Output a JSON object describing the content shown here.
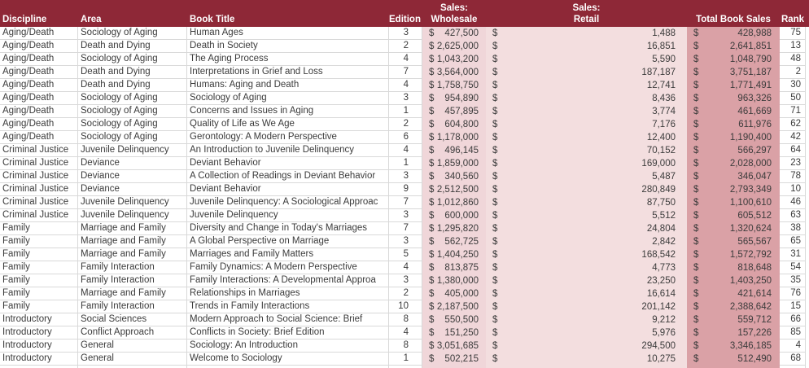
{
  "colors": {
    "header_bg": "#8E2837",
    "header_text": "#FFFFFF",
    "text": "#3B3B3B",
    "gridline": "#D9D9D9",
    "wholesale_bg": "#F0D6D9",
    "retail_bg": "#F3DEDF",
    "total_bg": "#DAA1A6"
  },
  "table": {
    "currency_symbol": "$",
    "header": {
      "discipline": "Discipline",
      "area": "Area",
      "book_title": "Book Title",
      "edition": "Edition",
      "wholesale_line1": "Sales:",
      "wholesale_line2": "Wholesale",
      "retail_line1": "Sales:",
      "retail_line2": "Retail",
      "total": "Total Book Sales",
      "rank": "Rank"
    },
    "rows": [
      {
        "discipline": "Aging/Death",
        "area": "Sociology of Aging",
        "title": "Human Ages",
        "edition": "3",
        "wholesale": "427,500",
        "retail": "1,488",
        "total": "428,988",
        "rank": "75"
      },
      {
        "discipline": "Aging/Death",
        "area": "Death and Dying",
        "title": "Death in Society",
        "edition": "2",
        "wholesale": "2,625,000",
        "retail": "16,851",
        "total": "2,641,851",
        "rank": "13"
      },
      {
        "discipline": "Aging/Death",
        "area": "Sociology of Aging",
        "title": "The Aging Process",
        "edition": "4",
        "wholesale": "1,043,200",
        "retail": "5,590",
        "total": "1,048,790",
        "rank": "48"
      },
      {
        "discipline": "Aging/Death",
        "area": "Death and Dying",
        "title": "Interpretations in Grief and Loss",
        "edition": "7",
        "wholesale": "3,564,000",
        "retail": "187,187",
        "total": "3,751,187",
        "rank": "2"
      },
      {
        "discipline": "Aging/Death",
        "area": "Death and Dying",
        "title": "Humans: Aging and Death",
        "edition": "4",
        "wholesale": "1,758,750",
        "retail": "12,741",
        "total": "1,771,491",
        "rank": "30"
      },
      {
        "discipline": "Aging/Death",
        "area": "Sociology of Aging",
        "title": "Sociology of Aging",
        "edition": "3",
        "wholesale": "954,890",
        "retail": "8,436",
        "total": "963,326",
        "rank": "50"
      },
      {
        "discipline": "Aging/Death",
        "area": "Sociology of Aging",
        "title": "Concerns and Issues in Aging",
        "edition": "1",
        "wholesale": "457,895",
        "retail": "3,774",
        "total": "461,669",
        "rank": "71"
      },
      {
        "discipline": "Aging/Death",
        "area": "Sociology of Aging",
        "title": "Quality of Life as We Age",
        "edition": "2",
        "wholesale": "604,800",
        "retail": "7,176",
        "total": "611,976",
        "rank": "62"
      },
      {
        "discipline": "Aging/Death",
        "area": "Sociology of Aging",
        "title": "Gerontology: A Modern Perspective",
        "edition": "6",
        "wholesale": "1,178,000",
        "retail": "12,400",
        "total": "1,190,400",
        "rank": "42"
      },
      {
        "discipline": "Criminal Justice",
        "area": "Juvenile Delinquency",
        "title": "An Introduction to Juvenile Delinquency",
        "edition": "4",
        "wholesale": "496,145",
        "retail": "70,152",
        "total": "566,297",
        "rank": "64"
      },
      {
        "discipline": "Criminal Justice",
        "area": "Deviance",
        "title": "Deviant Behavior",
        "edition": "1",
        "wholesale": "1,859,000",
        "retail": "169,000",
        "total": "2,028,000",
        "rank": "23"
      },
      {
        "discipline": "Criminal Justice",
        "area": "Deviance",
        "title": "A Collection of Readings in Deviant Behavior",
        "edition": "3",
        "wholesale": "340,560",
        "retail": "5,487",
        "total": "346,047",
        "rank": "78"
      },
      {
        "discipline": "Criminal Justice",
        "area": "Deviance",
        "title": "Deviant Behavior",
        "edition": "9",
        "wholesale": "2,512,500",
        "retail": "280,849",
        "total": "2,793,349",
        "rank": "10"
      },
      {
        "discipline": "Criminal Justice",
        "area": "Juvenile Delinquency",
        "title": "Juvenile Delinquency: A Sociological Approac",
        "edition": "7",
        "wholesale": "1,012,860",
        "retail": "87,750",
        "total": "1,100,610",
        "rank": "46"
      },
      {
        "discipline": "Criminal Justice",
        "area": "Juvenile Delinquency",
        "title": "Juvenile Delinquency",
        "edition": "3",
        "wholesale": "600,000",
        "retail": "5,512",
        "total": "605,512",
        "rank": "63"
      },
      {
        "discipline": "Family",
        "area": "Marriage and Family",
        "title": "Diversity and Change in Today's Marriages",
        "edition": "7",
        "wholesale": "1,295,820",
        "retail": "24,804",
        "total": "1,320,624",
        "rank": "38"
      },
      {
        "discipline": "Family",
        "area": "Marriage and Family",
        "title": "A Global Perspective on Marriage",
        "edition": "3",
        "wholesale": "562,725",
        "retail": "2,842",
        "total": "565,567",
        "rank": "65"
      },
      {
        "discipline": "Family",
        "area": "Marriage and Family",
        "title": "Marriages and Family Matters",
        "edition": "5",
        "wholesale": "1,404,250",
        "retail": "168,542",
        "total": "1,572,792",
        "rank": "31"
      },
      {
        "discipline": "Family",
        "area": "Family Interaction",
        "title": "Family Dynamics: A Modern Perspective",
        "edition": "4",
        "wholesale": "813,875",
        "retail": "4,773",
        "total": "818,648",
        "rank": "54"
      },
      {
        "discipline": "Family",
        "area": "Family Interaction",
        "title": "Family Interactions: A Developmental Approa",
        "edition": "3",
        "wholesale": "1,380,000",
        "retail": "23,250",
        "total": "1,403,250",
        "rank": "35"
      },
      {
        "discipline": "Family",
        "area": "Marriage and Family",
        "title": "Relationships in Marriages",
        "edition": "2",
        "wholesale": "405,000",
        "retail": "16,614",
        "total": "421,614",
        "rank": "76"
      },
      {
        "discipline": "Family",
        "area": "Family Interaction",
        "title": "Trends in Family Interactions",
        "edition": "10",
        "wholesale": "2,187,500",
        "retail": "201,142",
        "total": "2,388,642",
        "rank": "15"
      },
      {
        "discipline": "Introductory",
        "area": "Social Sciences",
        "title": "Modern Approach to Social Science: Brief",
        "edition": "8",
        "wholesale": "550,500",
        "retail": "9,212",
        "total": "559,712",
        "rank": "66"
      },
      {
        "discipline": "Introductory",
        "area": "Conflict Approach",
        "title": "Conflicts in Society: Brief Edition",
        "edition": "4",
        "wholesale": "151,250",
        "retail": "5,976",
        "total": "157,226",
        "rank": "85"
      },
      {
        "discipline": "Introductory",
        "area": "General",
        "title": "Sociology: An Introduction",
        "edition": "8",
        "wholesale": "3,051,685",
        "retail": "294,500",
        "total": "3,346,185",
        "rank": "4"
      },
      {
        "discipline": "Introductory",
        "area": "General",
        "title": "Welcome to Sociology",
        "edition": "1",
        "wholesale": "502,215",
        "retail": "10,275",
        "total": "512,490",
        "rank": "68"
      }
    ]
  }
}
